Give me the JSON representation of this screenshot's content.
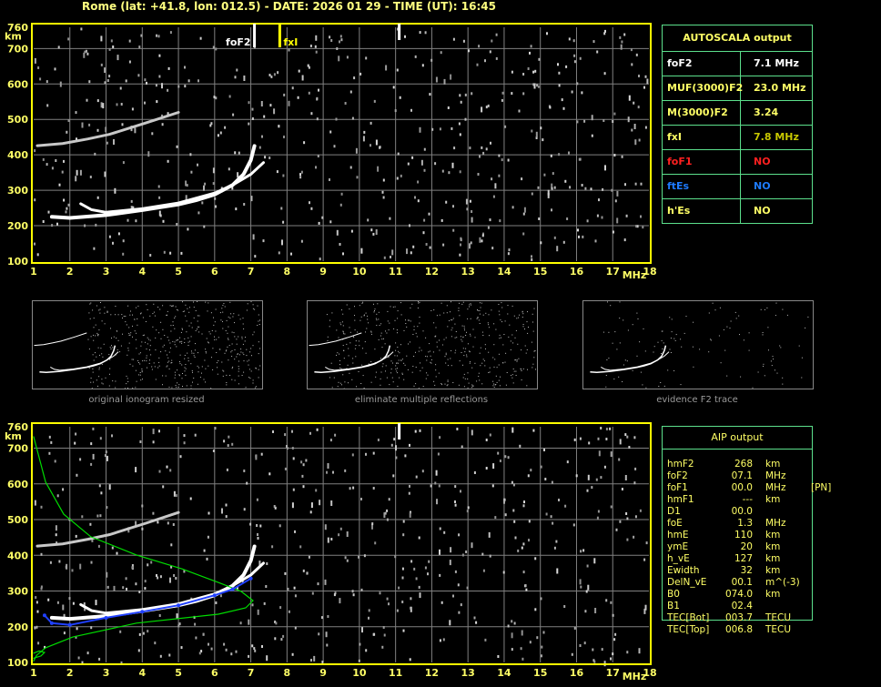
{
  "header": {
    "title": "Rome (lat: +41.8, lon: 012.5) - DATE: 2026 01 29 - TIME (UT): 16:45"
  },
  "colors": {
    "axis": "#ffff00",
    "grid": "#808080",
    "tick_label": "#ffff66",
    "trace": "#ffffff",
    "fitted_trace": "#2040ff",
    "profile": "#00dd00",
    "table_border": "#5ce08c",
    "foF1": "#ff2020",
    "ftEs": "#1e7bff",
    "fxI": "#c8c800"
  },
  "chart_data": [
    {
      "type": "scatter",
      "name_label": "ionogram-autoscala",
      "xlabel": "MHz",
      "ylabel": "km",
      "xlim": [
        1,
        18
      ],
      "ylim": [
        100,
        760
      ],
      "xticks": [
        "1",
        "2",
        "3",
        "4",
        "5",
        "6",
        "7",
        "8",
        "9",
        "10",
        "11",
        "12",
        "13",
        "14",
        "15",
        "16",
        "17",
        "18"
      ],
      "yticks": [
        "100",
        "200",
        "300",
        "400",
        "500",
        "600",
        "700",
        "760"
      ],
      "grid": true,
      "markers": [
        {
          "label": "foF2",
          "freq": 7.1,
          "color": "#ffffff"
        },
        {
          "label": "fxI",
          "freq": 7.8,
          "color": "#ffff00"
        },
        {
          "label": "",
          "freq": 11.1,
          "color": "#ffffff"
        }
      ],
      "traces": {
        "o_trace": [
          [
            1.5,
            225
          ],
          [
            2,
            222
          ],
          [
            3,
            230
          ],
          [
            4,
            244
          ],
          [
            5,
            260
          ],
          [
            5.5,
            272
          ],
          [
            6,
            288
          ],
          [
            6.5,
            315
          ],
          [
            6.8,
            345
          ],
          [
            7.0,
            385
          ],
          [
            7.1,
            425
          ]
        ],
        "x_trace": [
          [
            2.3,
            262
          ],
          [
            2.6,
            245
          ],
          [
            3,
            238
          ],
          [
            4,
            248
          ],
          [
            5,
            264
          ],
          [
            6,
            292
          ],
          [
            6.5,
            315
          ],
          [
            7.0,
            345
          ],
          [
            7.35,
            378
          ]
        ],
        "multiple_reflection": [
          [
            1.1,
            426
          ],
          [
            1.8,
            432
          ],
          [
            2.5,
            445
          ],
          [
            3.1,
            458
          ],
          [
            4.1,
            490
          ],
          [
            5.0,
            520
          ]
        ]
      }
    },
    {
      "type": "line",
      "name_label": "ionogram-aip",
      "xlabel": "MHz",
      "ylabel": "km",
      "xlim": [
        1,
        18
      ],
      "ylim": [
        100,
        760
      ],
      "xticks": [
        "1",
        "2",
        "3",
        "4",
        "5",
        "6",
        "7",
        "8",
        "9",
        "10",
        "11",
        "12",
        "13",
        "14",
        "15",
        "16",
        "17",
        "18"
      ],
      "yticks": [
        "100",
        "200",
        "300",
        "400",
        "500",
        "600",
        "700",
        "760"
      ],
      "grid": true,
      "markers": [
        {
          "label": "",
          "freq": 11.1,
          "color": "#ffffff"
        }
      ],
      "traces": {
        "o_trace": [
          [
            1.5,
            225
          ],
          [
            2,
            222
          ],
          [
            3,
            230
          ],
          [
            4,
            244
          ],
          [
            5,
            260
          ],
          [
            5.5,
            272
          ],
          [
            6,
            288
          ],
          [
            6.5,
            315
          ],
          [
            6.8,
            345
          ],
          [
            7.0,
            385
          ],
          [
            7.1,
            425
          ]
        ],
        "x_trace": [
          [
            2.3,
            262
          ],
          [
            2.6,
            245
          ],
          [
            3,
            238
          ],
          [
            4,
            248
          ],
          [
            5,
            264
          ],
          [
            6,
            292
          ],
          [
            6.5,
            315
          ],
          [
            7.0,
            345
          ],
          [
            7.35,
            378
          ]
        ],
        "multiple_reflection": [
          [
            1.1,
            426
          ],
          [
            1.8,
            432
          ],
          [
            2.5,
            445
          ],
          [
            3.1,
            458
          ],
          [
            4.1,
            490
          ],
          [
            5.0,
            520
          ]
        ],
        "fitted_trace": [
          [
            1.3,
            232
          ],
          [
            1.5,
            210
          ],
          [
            2,
            205
          ],
          [
            3,
            225
          ],
          [
            4,
            242
          ],
          [
            5,
            260
          ],
          [
            6,
            288
          ],
          [
            6.5,
            305
          ],
          [
            7.0,
            335
          ]
        ],
        "profile": [
          [
            1.0,
            732
          ],
          [
            1.33,
            605
          ],
          [
            1.83,
            515
          ],
          [
            2.58,
            452
          ],
          [
            3.84,
            401
          ],
          [
            5.1,
            362
          ],
          [
            6.1,
            324
          ],
          [
            6.73,
            299
          ],
          [
            7.06,
            273
          ],
          [
            6.86,
            253
          ],
          [
            6.1,
            235
          ],
          [
            3.84,
            210
          ],
          [
            2.08,
            171
          ],
          [
            1.33,
            141
          ],
          [
            1.08,
            120
          ],
          [
            1.0,
            104
          ]
        ],
        "e_profile": [
          [
            1.0,
            112
          ],
          [
            1.2,
            118
          ],
          [
            1.3,
            128
          ],
          [
            1.15,
            132
          ],
          [
            1.0,
            126
          ]
        ]
      }
    }
  ],
  "autoscala": {
    "title": "AUTOSCALA output",
    "rows": [
      {
        "key": "foF2",
        "value": "7.1 MHz",
        "color": "#ffffff",
        "vcolor": "#ffffff"
      },
      {
        "key": "MUF(3000)F2",
        "value": "23.0 MHz",
        "color": "#ffff66",
        "vcolor": "#ffff66"
      },
      {
        "key": "M(3000)F2",
        "value": "3.24",
        "color": "#ffff66",
        "vcolor": "#ffff66"
      },
      {
        "key": "fxI",
        "value": "7.8 MHz",
        "color": "#ffff66",
        "vcolor": "#c8c800"
      },
      {
        "key": "foF1",
        "value": "NO",
        "color": "#ff2020",
        "vcolor": "#ff2020"
      },
      {
        "key": "ftEs",
        "value": "NO",
        "color": "#1e7bff",
        "vcolor": "#1e7bff"
      },
      {
        "key": "h'Es",
        "value": "NO",
        "color": "#ffff66",
        "vcolor": "#ffff66"
      }
    ]
  },
  "thumbnails": [
    {
      "caption": "original ionogram resized"
    },
    {
      "caption": "eliminate multiple reflections"
    },
    {
      "caption": "evidence F2 trace"
    }
  ],
  "aip": {
    "title": "AIP output",
    "rows": [
      {
        "key": "hmF2",
        "value": "268",
        "unit": "km",
        "extra": ""
      },
      {
        "key": "foF2",
        "value": "07.1",
        "unit": "MHz",
        "extra": ""
      },
      {
        "key": "foF1",
        "value": "00.0",
        "unit": "MHz",
        "extra": "[PN]"
      },
      {
        "key": "hmF1",
        "value": "---",
        "unit": "km",
        "extra": ""
      },
      {
        "key": "D1",
        "value": "00.0",
        "unit": "",
        "extra": ""
      },
      {
        "key": "foE",
        "value": "1.3",
        "unit": "MHz",
        "extra": ""
      },
      {
        "key": "hmE",
        "value": "110",
        "unit": "km",
        "extra": ""
      },
      {
        "key": "ymE",
        "value": "20",
        "unit": "km",
        "extra": ""
      },
      {
        "key": "h_vE",
        "value": "127",
        "unit": "km",
        "extra": ""
      },
      {
        "key": "Ewidth",
        "value": "32",
        "unit": "km",
        "extra": ""
      },
      {
        "key": "DelN_vE",
        "value": "00.1",
        "unit": "m^(-3)",
        "extra": ""
      },
      {
        "key": "B0",
        "value": "074.0",
        "unit": "km",
        "extra": ""
      },
      {
        "key": "B1",
        "value": "02.4",
        "unit": "",
        "extra": ""
      },
      {
        "key": "TEC[Bot]",
        "value": "003.7",
        "unit": "TECU",
        "extra": ""
      },
      {
        "key": "TEC[Top]",
        "value": "006.8",
        "unit": "TECU",
        "extra": ""
      }
    ]
  }
}
